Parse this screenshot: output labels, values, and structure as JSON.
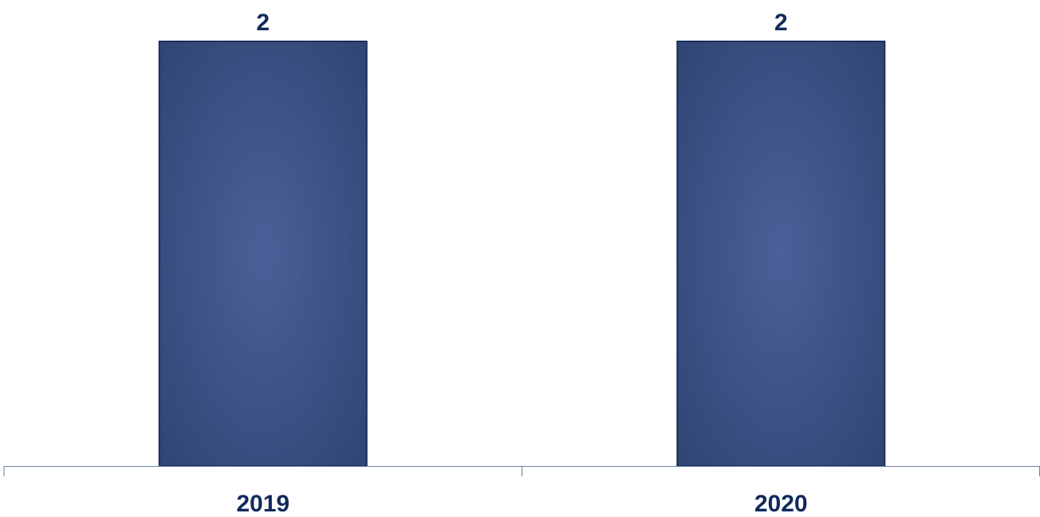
{
  "chart_data": {
    "type": "bar",
    "categories": [
      "2019",
      "2020"
    ],
    "values": [
      2,
      2
    ],
    "value_labels": [
      "2",
      "2"
    ],
    "title": "",
    "xlabel": "",
    "ylabel": "",
    "ylim": [
      0,
      2
    ],
    "grid": false,
    "legend": "none",
    "y_axis_visible": false
  },
  "colors": {
    "bar_center": "#4a6199",
    "bar_edge": "#2f4371",
    "bar_stroke": "#1b2f5e",
    "axis": "#6a7fa8",
    "label": "#112a5c"
  }
}
